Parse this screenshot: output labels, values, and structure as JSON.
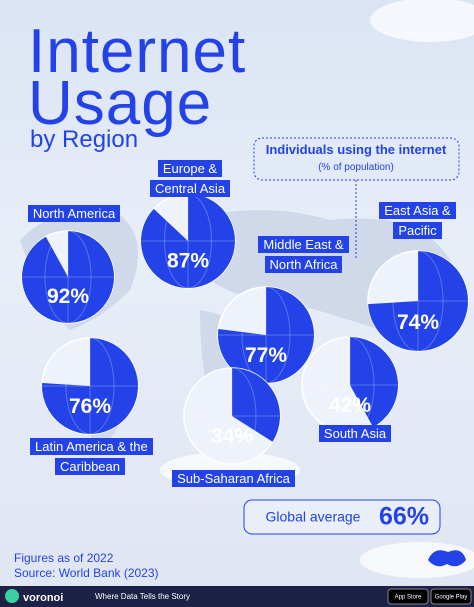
{
  "chart_data": {
    "type": "pie",
    "title": "Internet Usage",
    "subtitle": "by Region",
    "legend_title": "Individuals using the internet",
    "legend_subtitle": "(% of population)",
    "categories": [
      "North America",
      "Europe & Central Asia",
      "Middle East & North Africa",
      "East Asia & Pacific",
      "Latin America & the Caribbean",
      "Sub-Saharan Africa",
      "South Asia"
    ],
    "values": [
      92,
      87,
      77,
      74,
      76,
      34,
      42
    ],
    "value_labels": [
      "92%",
      "87%",
      "77%",
      "74%",
      "76%",
      "34%",
      "42%"
    ],
    "color": "#2343e8",
    "background_color": "#e9eef7",
    "global_average_text": "Global average",
    "global_average": 66,
    "global_average_label": "66%",
    "notes": [
      "Figures as of 2022",
      "Source: World Bank (2023)"
    ],
    "brand": "voronoi",
    "tagline": "Where Data Tells the Story",
    "stores": [
      "App Store",
      "Google Play"
    ]
  }
}
